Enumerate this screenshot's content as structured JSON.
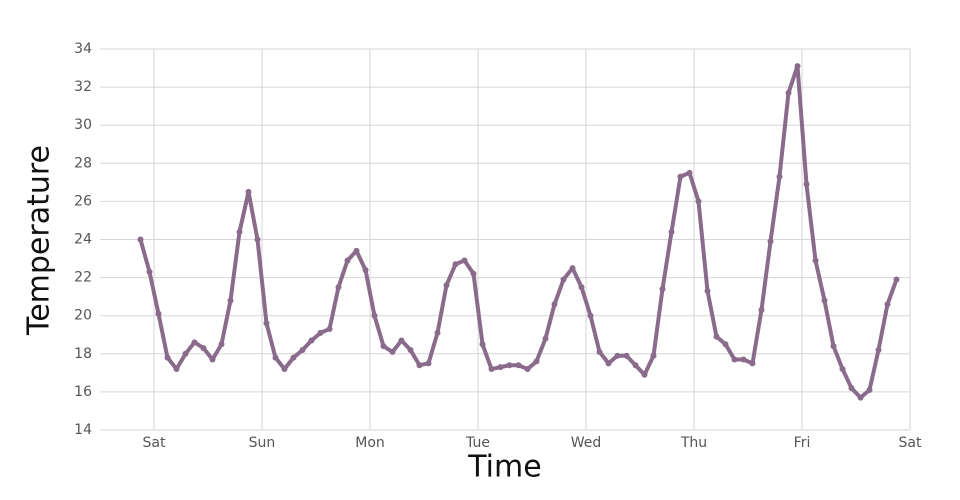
{
  "chart_data": {
    "type": "line",
    "x_label": "Time",
    "y_label": "Temperature",
    "x": [
      -3,
      -1,
      1,
      3,
      5,
      7,
      9,
      11,
      13,
      15,
      17,
      19,
      21,
      23,
      25,
      27,
      29,
      31,
      33,
      35,
      37,
      39,
      41,
      43,
      45,
      47,
      49,
      51,
      53,
      55,
      57,
      59,
      61,
      63,
      65,
      67,
      69,
      71,
      73,
      75,
      77,
      79,
      81,
      83,
      85,
      87,
      89,
      91,
      93,
      95,
      97,
      99,
      101,
      103,
      105,
      107,
      109,
      111,
      113,
      115,
      117,
      119,
      121,
      123,
      125,
      127,
      129,
      131,
      133,
      135,
      137,
      139,
      141,
      143,
      145,
      147,
      149,
      151,
      153,
      155,
      157,
      159,
      161,
      163,
      165
    ],
    "series": [
      {
        "name": "Temperature",
        "color": "#8a6b8c",
        "values": [
          24.0,
          22.3,
          20.1,
          17.8,
          17.2,
          18.0,
          18.6,
          18.3,
          17.7,
          18.5,
          20.8,
          24.4,
          26.5,
          24.0,
          19.6,
          17.8,
          17.2,
          17.8,
          18.2,
          18.7,
          19.1,
          19.3,
          21.5,
          22.9,
          23.4,
          22.4,
          20.0,
          18.4,
          18.1,
          18.7,
          18.2,
          17.4,
          17.5,
          19.1,
          21.6,
          22.7,
          22.9,
          22.2,
          18.5,
          17.2,
          17.3,
          17.4,
          17.4,
          17.2,
          17.6,
          18.8,
          20.6,
          21.9,
          22.5,
          21.5,
          20.0,
          18.1,
          17.5,
          17.9,
          17.9,
          17.4,
          16.9,
          17.9,
          21.4,
          24.4,
          27.3,
          27.5,
          26.0,
          21.3,
          18.9,
          18.5,
          17.7,
          17.7,
          17.5,
          20.3,
          23.9,
          27.3,
          31.7,
          33.1,
          26.9,
          22.9,
          20.8,
          18.4,
          17.2,
          16.2,
          15.7,
          16.1,
          18.2,
          20.6,
          21.9
        ]
      }
    ],
    "xlim": [
      -12,
      168
    ],
    "xticks": [
      {
        "value": 0,
        "label": "Sat"
      },
      {
        "value": 24,
        "label": "Sun"
      },
      {
        "value": 48,
        "label": "Mon"
      },
      {
        "value": 72,
        "label": "Tue"
      },
      {
        "value": 96,
        "label": "Wed"
      },
      {
        "value": 120,
        "label": "Thu"
      },
      {
        "value": 144,
        "label": "Fri"
      },
      {
        "value": 168,
        "label": "Sat"
      }
    ],
    "ylim": [
      14,
      34
    ],
    "yticks": [
      14,
      16,
      18,
      20,
      22,
      24,
      26,
      28,
      30,
      32,
      34
    ],
    "grid": true
  }
}
